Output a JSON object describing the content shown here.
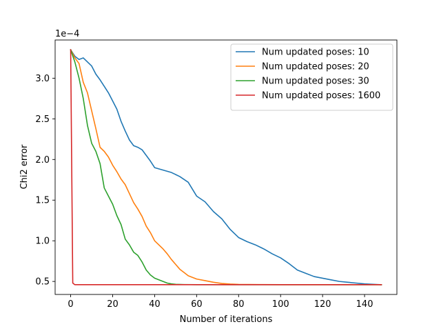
{
  "chart_data": {
    "type": "line",
    "xlabel": "Number of iterations",
    "ylabel": "Chi2 error",
    "y_offset_text": "1e−4",
    "xlim": [
      -7.4,
      155.4
    ],
    "ylim": [
      0.34,
      3.47
    ],
    "xticks": [
      0,
      20,
      40,
      60,
      80,
      100,
      120,
      140
    ],
    "xtick_labels": [
      "0",
      "20",
      "40",
      "60",
      "80",
      "100",
      "120",
      "140"
    ],
    "yticks": [
      0.5,
      1.0,
      1.5,
      2.0,
      2.5,
      3.0
    ],
    "ytick_labels": [
      "0.5",
      "1.0",
      "1.5",
      "2.0",
      "2.5",
      "3.0"
    ],
    "grid": false,
    "legend_position": "upper right",
    "series": [
      {
        "name": "Num updated poses: 10",
        "color": "#1f77b4",
        "x": [
          0,
          2,
          4,
          6,
          8,
          10,
          12,
          14,
          16,
          18,
          20,
          22,
          24,
          26,
          28,
          30,
          32,
          34,
          36,
          38,
          40,
          44,
          48,
          52,
          56,
          60,
          64,
          68,
          72,
          76,
          80,
          84,
          88,
          92,
          96,
          100,
          104,
          108,
          112,
          116,
          120,
          124,
          128,
          132,
          136,
          140,
          144,
          148
        ],
        "values": [
          3.35,
          3.27,
          3.23,
          3.25,
          3.2,
          3.15,
          3.05,
          2.98,
          2.9,
          2.82,
          2.72,
          2.62,
          2.47,
          2.35,
          2.24,
          2.17,
          2.15,
          2.12,
          2.05,
          1.98,
          1.9,
          1.87,
          1.84,
          1.79,
          1.72,
          1.55,
          1.48,
          1.36,
          1.27,
          1.14,
          1.04,
          0.99,
          0.95,
          0.9,
          0.84,
          0.79,
          0.72,
          0.64,
          0.6,
          0.56,
          0.54,
          0.52,
          0.5,
          0.49,
          0.48,
          0.47,
          0.465,
          0.46
        ]
      },
      {
        "name": "Num updated poses: 20",
        "color": "#ff7f0e",
        "x": [
          0,
          2,
          4,
          6,
          8,
          10,
          12,
          14,
          16,
          18,
          20,
          22,
          24,
          26,
          28,
          30,
          32,
          34,
          36,
          38,
          40,
          42,
          44,
          46,
          48,
          50,
          52,
          54,
          56,
          58,
          60,
          64,
          68,
          72,
          76,
          80,
          90,
          100,
          120,
          148
        ],
        "values": [
          3.35,
          3.25,
          3.18,
          2.95,
          2.82,
          2.6,
          2.38,
          2.15,
          2.1,
          2.03,
          1.93,
          1.85,
          1.76,
          1.69,
          1.58,
          1.47,
          1.39,
          1.3,
          1.18,
          1.1,
          1.0,
          0.95,
          0.9,
          0.84,
          0.77,
          0.71,
          0.65,
          0.61,
          0.57,
          0.55,
          0.53,
          0.51,
          0.49,
          0.475,
          0.468,
          0.464,
          0.462,
          0.46,
          0.46,
          0.46
        ]
      },
      {
        "name": "Num updated poses: 30",
        "color": "#2ca02c",
        "x": [
          0,
          2,
          4,
          6,
          8,
          10,
          12,
          14,
          16,
          18,
          20,
          22,
          24,
          26,
          28,
          30,
          32,
          34,
          36,
          38,
          40,
          42,
          44,
          46,
          48,
          50,
          54,
          60,
          70,
          80,
          100,
          148
        ],
        "values": [
          3.35,
          3.2,
          3.0,
          2.75,
          2.42,
          2.2,
          2.1,
          1.95,
          1.65,
          1.55,
          1.45,
          1.31,
          1.2,
          1.02,
          0.95,
          0.86,
          0.82,
          0.74,
          0.64,
          0.58,
          0.54,
          0.52,
          0.5,
          0.48,
          0.47,
          0.465,
          0.462,
          0.46,
          0.46,
          0.46,
          0.46,
          0.46
        ]
      },
      {
        "name": "Num updated poses: 1600",
        "color": "#d62728",
        "x": [
          0,
          1,
          2,
          148
        ],
        "values": [
          3.35,
          0.48,
          0.46,
          0.46
        ]
      }
    ]
  }
}
